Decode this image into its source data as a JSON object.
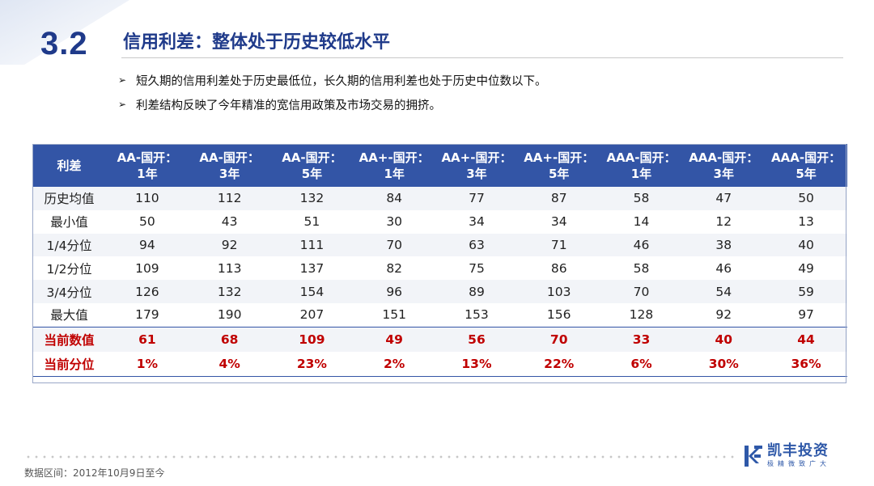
{
  "slide": {
    "number": "3.2",
    "title": "信用利差：整体处于历史较低水平"
  },
  "bullets": [
    "短久期的信用利差处于历史最低位，长久期的信用利差也处于历史中位数以下。",
    "利差结构反映了今年精准的宽信用政策及市场交易的拥挤。"
  ],
  "table": {
    "corner_label": "利差",
    "columns": [
      {
        "line1": "AA-国开：",
        "line2": "1年"
      },
      {
        "line1": "AA-国开：",
        "line2": "3年"
      },
      {
        "line1": "AA-国开：",
        "line2": "5年"
      },
      {
        "line1": "AA+-国开：",
        "line2": "1年"
      },
      {
        "line1": "AA+-国开：",
        "line2": "3年"
      },
      {
        "line1": "AA+-国开：",
        "line2": "5年"
      },
      {
        "line1": "AAA-国开：",
        "line2": "1年"
      },
      {
        "line1": "AAA-国开：",
        "line2": "3年"
      },
      {
        "line1": "AAA-国开：",
        "line2": "5年"
      }
    ],
    "rows": [
      {
        "label": "历史均值",
        "values": [
          "110",
          "112",
          "132",
          "84",
          "77",
          "87",
          "58",
          "47",
          "50"
        ]
      },
      {
        "label": "最小值",
        "values": [
          "50",
          "43",
          "51",
          "30",
          "34",
          "34",
          "14",
          "12",
          "13"
        ]
      },
      {
        "label": "1/4分位",
        "values": [
          "94",
          "92",
          "111",
          "70",
          "63",
          "71",
          "46",
          "38",
          "40"
        ]
      },
      {
        "label": "1/2分位",
        "values": [
          "109",
          "113",
          "137",
          "82",
          "75",
          "86",
          "58",
          "46",
          "49"
        ]
      },
      {
        "label": "3/4分位",
        "values": [
          "126",
          "132",
          "154",
          "96",
          "89",
          "103",
          "70",
          "54",
          "59"
        ]
      },
      {
        "label": "最大值",
        "values": [
          "179",
          "190",
          "207",
          "151",
          "153",
          "156",
          "128",
          "92",
          "97"
        ]
      },
      {
        "label": "当前数值",
        "values": [
          "61",
          "68",
          "109",
          "49",
          "56",
          "70",
          "33",
          "40",
          "44"
        ]
      },
      {
        "label": "当前分位",
        "values": [
          "1%",
          "4%",
          "23%",
          "2%",
          "13%",
          "22%",
          "6%",
          "30%",
          "36%"
        ]
      }
    ]
  },
  "footer": {
    "note": "数据区间：2012年10月9日至今",
    "logo_name": "凯丰投资",
    "logo_tagline": "极精微致广大"
  },
  "colors": {
    "primary": "#1f3a8a",
    "header_bg": "#3355a6",
    "highlight_text": "#c00000"
  }
}
